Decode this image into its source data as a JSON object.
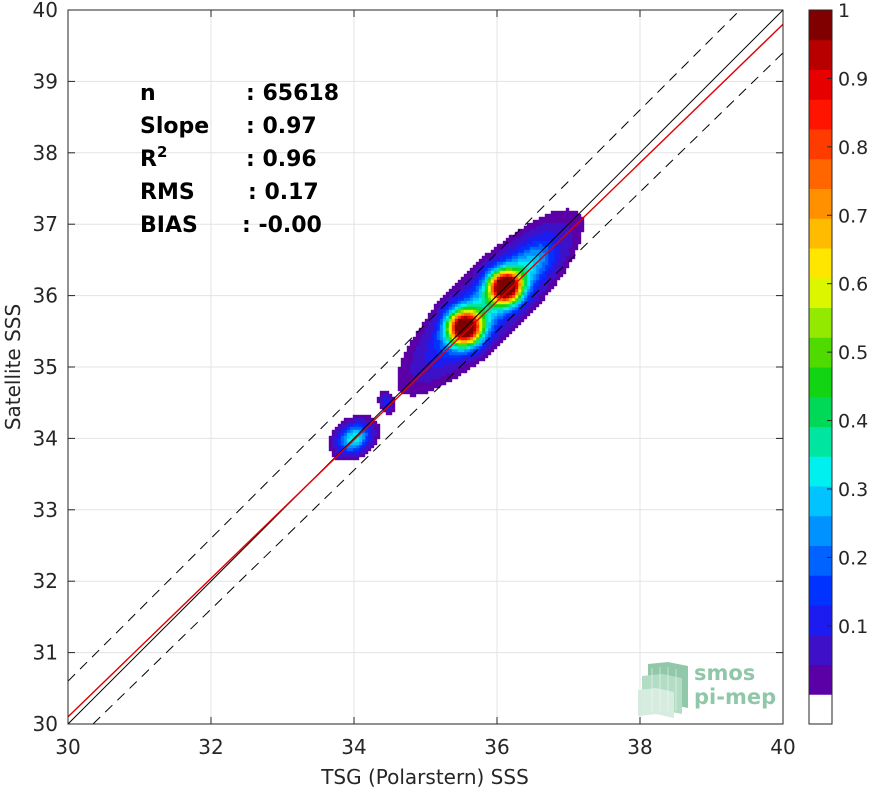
{
  "chart_data": {
    "type": "heatmap",
    "subtype": "density-contour-scatter",
    "xlabel": "TSG (Polarstern) SSS",
    "ylabel": "Satellite SSS",
    "xlim": [
      30,
      40
    ],
    "ylim": [
      30,
      40
    ],
    "xticks": [
      30,
      32,
      34,
      36,
      38,
      40
    ],
    "yticks": [
      30,
      31,
      32,
      33,
      34,
      35,
      36,
      37,
      38,
      39,
      40
    ],
    "grid": true,
    "stats": [
      {
        "label": "n",
        "sep": ": ",
        "value": "65618"
      },
      {
        "label": "Slope",
        "sep": ": ",
        "value": "0.97"
      },
      {
        "label": "R",
        "sup": "2",
        "sep": ": ",
        "value": "0.96"
      },
      {
        "label": "RMS",
        "sep": ": ",
        "value": "0.17"
      },
      {
        "label": "BIAS",
        "sep": ": ",
        "value": "-0.00"
      }
    ],
    "lines": [
      {
        "type": "identity",
        "color": "#000000",
        "style": "solid",
        "points": [
          [
            30,
            30
          ],
          [
            40,
            40
          ]
        ]
      },
      {
        "type": "fit",
        "color": "#e00000",
        "style": "solid",
        "slope": 0.97,
        "points": [
          [
            30,
            30.1
          ],
          [
            40,
            39.8
          ]
        ]
      },
      {
        "type": "upper-bound",
        "color": "#000000",
        "style": "dashed",
        "points": [
          [
            30,
            30.6
          ],
          [
            39.4,
            40
          ]
        ]
      },
      {
        "type": "lower-bound",
        "color": "#000000",
        "style": "dashed",
        "points": [
          [
            30.35,
            30
          ],
          [
            40,
            39.4
          ]
        ]
      }
    ],
    "clusters": [
      {
        "cx": 34.0,
        "cy": 34.0,
        "sx": 0.16,
        "sy": 0.12,
        "rot_deg": 35,
        "peak": 0.35
      },
      {
        "cx": 34.45,
        "cy": 34.5,
        "sx": 0.05,
        "sy": 0.08,
        "rot_deg": 20,
        "peak": 0.12
      },
      {
        "cx": 35.55,
        "cy": 35.55,
        "sx": 0.16,
        "sy": 0.16,
        "rot_deg": 45,
        "peak": 1.0
      },
      {
        "cx": 36.12,
        "cy": 36.12,
        "sx": 0.15,
        "sy": 0.15,
        "rot_deg": 45,
        "peak": 1.0
      },
      {
        "cx": 35.9,
        "cy": 35.9,
        "sx": 0.75,
        "sy": 0.22,
        "rot_deg": 45,
        "peak": 0.32
      },
      {
        "cx": 36.5,
        "cy": 36.45,
        "sx": 0.28,
        "sy": 0.16,
        "rot_deg": 45,
        "peak": 0.12
      }
    ],
    "colorbar": {
      "min": 0,
      "max": 1,
      "ticks": [
        "0.1",
        "0.2",
        "0.3",
        "0.4",
        "0.5",
        "0.6",
        "0.7",
        "0.8",
        "0.9",
        "1"
      ],
      "tick_values": [
        0.1,
        0.2,
        0.3,
        0.4,
        0.5,
        0.6,
        0.7,
        0.8,
        0.9,
        1.0
      ],
      "colors": [
        "#ffffff",
        "#5b00a6",
        "#3e11c8",
        "#1c1cf0",
        "#0033ff",
        "#0063ff",
        "#0093ff",
        "#00c3ff",
        "#00efef",
        "#00e6a0",
        "#00d957",
        "#13d413",
        "#4fdb00",
        "#94e900",
        "#dcf600",
        "#ffe600",
        "#ffbb00",
        "#ff9000",
        "#ff6600",
        "#ff3c00",
        "#ff1400",
        "#e60000",
        "#b80000",
        "#800000"
      ]
    }
  },
  "logo": {
    "line1": "smos",
    "line2": "pi-mep"
  }
}
